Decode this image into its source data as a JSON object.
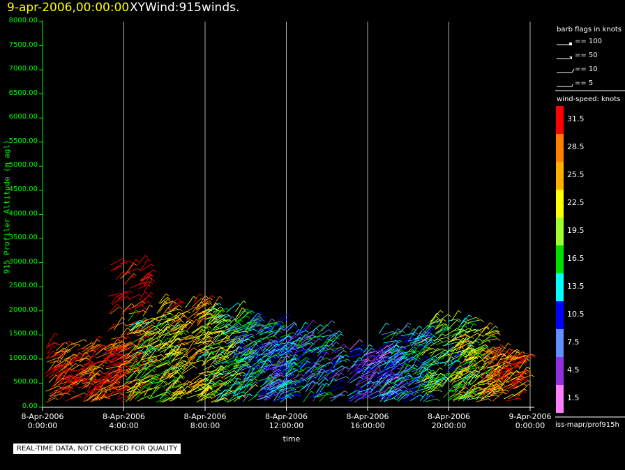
{
  "header": {
    "date": "9-apr-2006,00:00:00",
    "name": "XYWind:915winds."
  },
  "notice": "REAL-TIME DATA, NOT CHECKED FOR QUALITY",
  "footer": "iss-mapr/prof915h",
  "flags": {
    "title": "barb flags in knots",
    "items": [
      "== 100",
      "== 50",
      "== 10",
      "== 5"
    ]
  },
  "colorbar": {
    "title": "wind-speed: knots",
    "bands": [
      {
        "label": "31.5",
        "color": "#ff0000"
      },
      {
        "label": "28.5",
        "color": "#ff8000"
      },
      {
        "label": "25.5",
        "color": "#ffb000"
      },
      {
        "label": "22.5",
        "color": "#ffff00"
      },
      {
        "label": "19.5",
        "color": "#a0ff30"
      },
      {
        "label": "16.5",
        "color": "#00e000"
      },
      {
        "label": "13.5",
        "color": "#00ffff"
      },
      {
        "label": "10.5",
        "color": "#0000ff"
      },
      {
        "label": "7.5",
        "color": "#6090ff"
      },
      {
        "label": "4.5",
        "color": "#9030e0"
      },
      {
        "label": "1.5",
        "color": "#ff80ff"
      }
    ]
  },
  "chart_data": {
    "type": "scatter",
    "title": "XYWind:915winds.",
    "xlabel": "time",
    "ylabel": "915 Profiler Altitude (m agl)",
    "ylim": [
      0,
      8000
    ],
    "xlim_hours": [
      0,
      24
    ],
    "yticks": [
      "0.00",
      "500.00",
      "1000.00",
      "1500.00",
      "2000.00",
      "2500.00",
      "3000.00",
      "3500.00",
      "4000.00",
      "4500.00",
      "5000.00",
      "5500.00",
      "6000.00",
      "6500.00",
      "7000.00",
      "7500.00",
      "8000.00"
    ],
    "xticks": [
      {
        "line1": "8-Apr-2006",
        "line2": "0:00:00"
      },
      {
        "line1": "8-Apr-2006",
        "line2": "4:00:00"
      },
      {
        "line1": "8-Apr-2006",
        "line2": "8:00:00"
      },
      {
        "line1": "8-Apr-2006",
        "line2": "12:00:00"
      },
      {
        "line1": "8-Apr-2006",
        "line2": "16:00:00"
      },
      {
        "line1": "8-Apr-2006",
        "line2": "20:00:00"
      },
      {
        "line1": "9-Apr-2006",
        "line2": "0:00:00"
      }
    ],
    "grid": "vertical",
    "regions": [
      {
        "t0": 0.1,
        "t1": 1.5,
        "zmax": 1300,
        "speed": 31
      },
      {
        "t0": 1.5,
        "t1": 3.8,
        "zmax": 1250,
        "speed": 30
      },
      {
        "t0": 3.2,
        "t1": 5.0,
        "zmax": 3000,
        "speed": 30
      },
      {
        "t0": 4.0,
        "t1": 6.5,
        "zmax": 1800,
        "speed": 20
      },
      {
        "t0": 5.5,
        "t1": 8.5,
        "zmax": 2200,
        "speed": 24
      },
      {
        "t0": 7.5,
        "t1": 10.0,
        "zmax": 2000,
        "speed": 18
      },
      {
        "t0": 9.0,
        "t1": 12.0,
        "zmax": 1800,
        "speed": 12
      },
      {
        "t0": 10.5,
        "t1": 14.5,
        "zmax": 1600,
        "speed": 10
      },
      {
        "t0": 15.0,
        "t1": 17.5,
        "zmax": 1200,
        "speed": 8
      },
      {
        "t0": 16.5,
        "t1": 18.8,
        "zmax": 1550,
        "speed": 12
      },
      {
        "t0": 18.5,
        "t1": 21.0,
        "zmax": 1800,
        "speed": 17
      },
      {
        "t0": 20.0,
        "t1": 22.0,
        "zmax": 1550,
        "speed": 22
      },
      {
        "t0": 21.5,
        "t1": 23.5,
        "zmax": 1100,
        "speed": 28
      }
    ]
  }
}
